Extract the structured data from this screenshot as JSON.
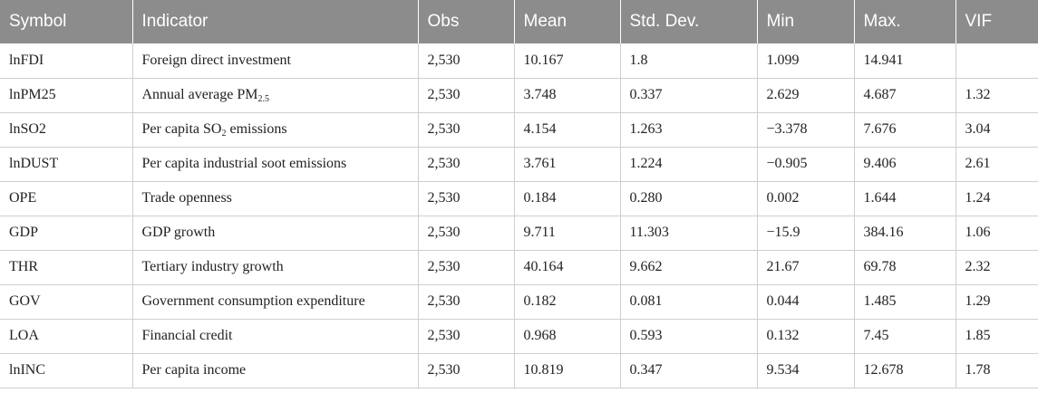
{
  "table": {
    "headers": [
      "Symbol",
      "Indicator",
      "Obs",
      "Mean",
      "Std. Dev.",
      "Min",
      "Max.",
      "VIF"
    ],
    "rows": [
      {
        "symbol": "lnFDI",
        "indicator": {
          "pre": "Foreign direct investment",
          "sub": "",
          "post": ""
        },
        "obs": "2,530",
        "mean": "10.167",
        "std": "1.8",
        "min": "1.099",
        "max": "14.941",
        "vif": ""
      },
      {
        "symbol": "lnPM25",
        "indicator": {
          "pre": "Annual average PM",
          "sub": "2.5",
          "post": ""
        },
        "obs": "2,530",
        "mean": "3.748",
        "std": "0.337",
        "min": "2.629",
        "max": "4.687",
        "vif": "1.32"
      },
      {
        "symbol": "lnSO2",
        "indicator": {
          "pre": "Per capita SO",
          "sub": "2",
          "post": " emissions"
        },
        "obs": "2,530",
        "mean": "4.154",
        "std": "1.263",
        "min": "−3.378",
        "max": "7.676",
        "vif": "3.04"
      },
      {
        "symbol": "lnDUST",
        "indicator": {
          "pre": "Per capita industrial soot emissions",
          "sub": "",
          "post": ""
        },
        "obs": "2,530",
        "mean": "3.761",
        "std": "1.224",
        "min": "−0.905",
        "max": "9.406",
        "vif": "2.61"
      },
      {
        "symbol": "OPE",
        "indicator": {
          "pre": "Trade openness",
          "sub": "",
          "post": ""
        },
        "obs": "2,530",
        "mean": "0.184",
        "std": "0.280",
        "min": "0.002",
        "max": "1.644",
        "vif": "1.24"
      },
      {
        "symbol": "GDP",
        "indicator": {
          "pre": "GDP growth",
          "sub": "",
          "post": ""
        },
        "obs": "2,530",
        "mean": "9.711",
        "std": "11.303",
        "min": "−15.9",
        "max": "384.16",
        "vif": "1.06"
      },
      {
        "symbol": "THR",
        "indicator": {
          "pre": "Tertiary industry growth",
          "sub": "",
          "post": ""
        },
        "obs": "2,530",
        "mean": "40.164",
        "std": "9.662",
        "min": "21.67",
        "max": "69.78",
        "vif": "2.32"
      },
      {
        "symbol": "GOV",
        "indicator": {
          "pre": "Government consumption expenditure",
          "sub": "",
          "post": ""
        },
        "obs": "2,530",
        "mean": "0.182",
        "std": "0.081",
        "min": "0.044",
        "max": "1.485",
        "vif": "1.29"
      },
      {
        "symbol": "LOA",
        "indicator": {
          "pre": "Financial credit",
          "sub": "",
          "post": ""
        },
        "obs": "2,530",
        "mean": "0.968",
        "std": "0.593",
        "min": "0.132",
        "max": "7.45",
        "vif": "1.85"
      },
      {
        "symbol": "lnINC",
        "indicator": {
          "pre": "Per capita income",
          "sub": "",
          "post": ""
        },
        "obs": "2,530",
        "mean": "10.819",
        "std": "0.347",
        "min": "9.534",
        "max": "12.678",
        "vif": "1.78"
      }
    ]
  }
}
